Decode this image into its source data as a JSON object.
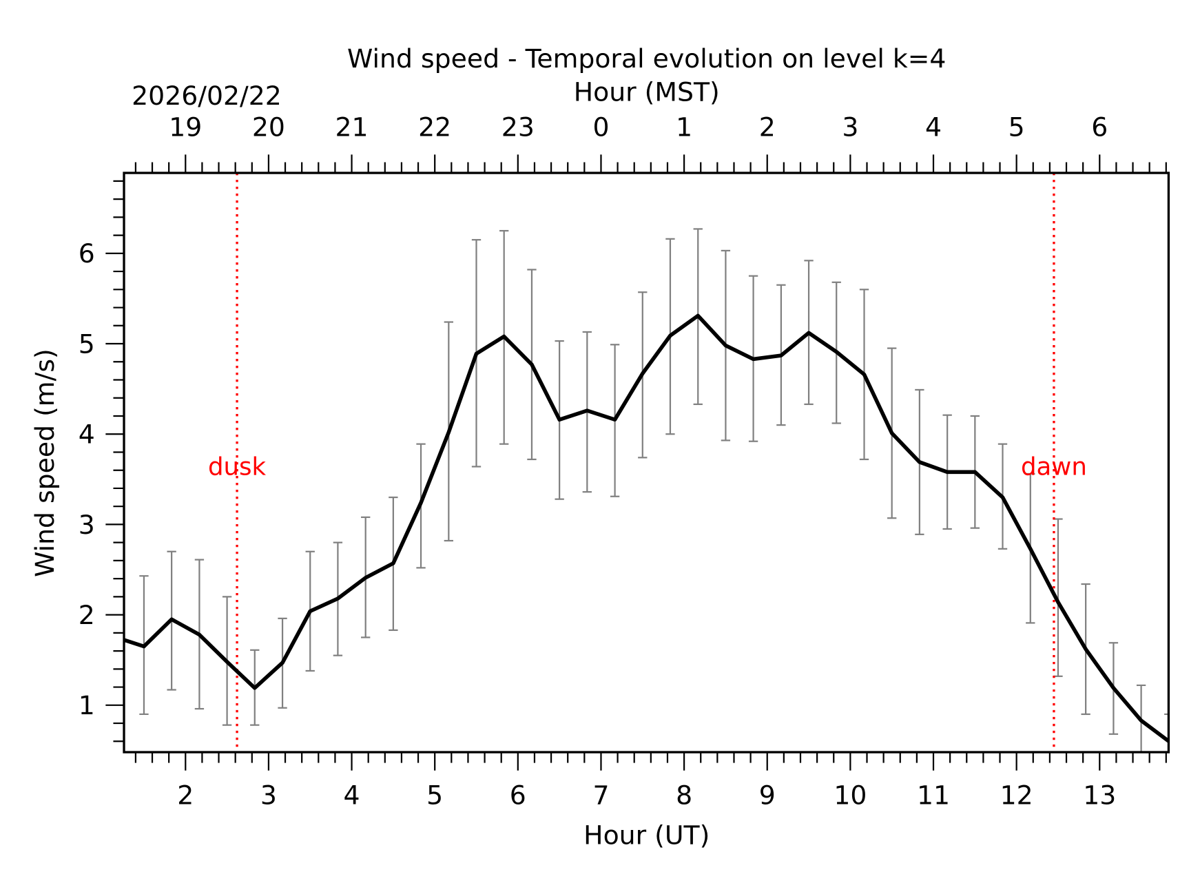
{
  "chart_data": {
    "type": "line",
    "title": "Wind speed - Temporal evolution on level k=4",
    "xlabel": "Hour (UT)",
    "ylabel": "Wind speed (m/s)",
    "top_xlabel": "Hour (MST)",
    "date_label": "2026/02/22",
    "xlim": [
      1.26,
      13.83
    ],
    "ylim": [
      0.48,
      6.89
    ],
    "x_ticks": [
      2,
      3,
      4,
      5,
      6,
      7,
      8,
      9,
      10,
      11,
      12,
      13
    ],
    "x_tick_labels": [
      "2",
      "3",
      "4",
      "5",
      "6",
      "7",
      "8",
      "9",
      "10",
      "11",
      "12",
      "13"
    ],
    "top_x_tick_labels": [
      "19",
      "20",
      "21",
      "22",
      "23",
      "0",
      "1",
      "2",
      "3",
      "4",
      "5",
      "6"
    ],
    "y_ticks": [
      1,
      2,
      3,
      4,
      5,
      6
    ],
    "y_tick_labels": [
      "1",
      "2",
      "3",
      "4",
      "5",
      "6"
    ],
    "grid": false,
    "line_color": "#000000",
    "errorbar_color": "#808080",
    "marker_color": "#ff0000",
    "x": [
      1.167,
      1.5,
      1.833,
      2.167,
      2.5,
      2.833,
      3.167,
      3.5,
      3.833,
      4.167,
      4.5,
      4.833,
      5.167,
      5.5,
      5.833,
      6.167,
      6.5,
      6.833,
      7.167,
      7.5,
      7.833,
      8.167,
      8.5,
      8.833,
      9.167,
      9.5,
      9.833,
      10.167,
      10.5,
      10.833,
      11.167,
      11.5,
      11.833,
      12.167,
      12.5,
      12.833,
      13.167,
      13.5,
      13.833
    ],
    "y": [
      1.75,
      1.65,
      1.95,
      1.78,
      1.48,
      1.19,
      1.47,
      2.04,
      2.18,
      2.41,
      2.57,
      3.24,
      4.02,
      4.89,
      5.08,
      4.77,
      4.16,
      4.26,
      4.16,
      4.67,
      5.09,
      5.31,
      4.98,
      4.83,
      4.87,
      5.12,
      4.91,
      4.66,
      4.01,
      3.69,
      3.58,
      3.58,
      3.3,
      2.73,
      2.14,
      1.62,
      1.19,
      0.83,
      0.6
    ],
    "y_upper": [
      null,
      2.43,
      2.7,
      2.61,
      2.2,
      1.61,
      1.96,
      2.7,
      2.8,
      3.08,
      3.3,
      3.89,
      5.24,
      6.15,
      6.25,
      5.82,
      5.03,
      5.13,
      4.99,
      5.57,
      6.16,
      6.27,
      6.03,
      5.75,
      5.65,
      5.92,
      5.68,
      5.6,
      4.95,
      4.49,
      4.21,
      4.2,
      3.89,
      3.56,
      3.06,
      2.34,
      1.69,
      1.22,
      0.9
    ],
    "y_lower": [
      null,
      0.9,
      1.17,
      0.96,
      0.78,
      0.78,
      0.97,
      1.38,
      1.55,
      1.75,
      1.83,
      2.52,
      2.82,
      3.64,
      3.89,
      3.72,
      3.28,
      3.36,
      3.31,
      3.74,
      4.0,
      4.33,
      3.93,
      3.92,
      4.1,
      4.33,
      4.12,
      3.72,
      3.07,
      2.89,
      2.95,
      2.96,
      2.73,
      1.91,
      1.32,
      0.9,
      0.68,
      0.45,
      0.3
    ],
    "annotations": [
      {
        "text": "dusk",
        "x": 2.62,
        "y": 3.65
      },
      {
        "text": "dawn",
        "x": 12.45,
        "y": 3.65
      }
    ]
  }
}
